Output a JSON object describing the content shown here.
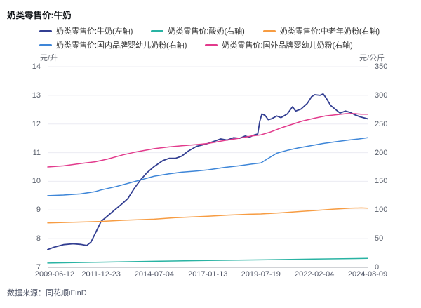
{
  "header": {
    "title": "奶类零售价:牛奶"
  },
  "footer": {
    "source": "数据来源：同花顺iFinD"
  },
  "chart_data": {
    "type": "line",
    "title": "奶类零售价:牛奶",
    "grid": true,
    "legend_position": "top",
    "x_axis": {
      "labels": [
        "2009-06-12",
        "2011-12-23",
        "2014-07-04",
        "2017-01-13",
        "2019-07-19",
        "2022-02-04",
        "2024-08-09"
      ],
      "tick_years": [
        2009.45,
        2011.98,
        2014.5,
        2017.04,
        2019.55,
        2022.09,
        2024.61
      ]
    },
    "y_axis_left": {
      "unit": "元/升",
      "min": 7,
      "max": 14,
      "ticks": [
        14,
        13,
        12,
        11,
        10,
        9,
        8,
        7
      ]
    },
    "y_axis_right": {
      "unit": "元/公斤",
      "min": 0,
      "max": 350,
      "ticks": [
        350,
        300,
        250,
        200,
        150,
        100,
        50,
        0
      ]
    },
    "colors": {
      "milk": "#333f92",
      "yogurt": "#29b3a3",
      "midlife_powder": "#f79c42",
      "domestic_formula": "#3e86d8",
      "foreign_formula": "#e23a8c",
      "grid": "#ececf3",
      "baseline": "#b4b6be"
    },
    "series": [
      {
        "name": "奶类零售价:牛奶(左轴)",
        "axis": "left",
        "color": "#333f92",
        "width": 1.8,
        "points": [
          [
            2009.45,
            7.62
          ],
          [
            2009.75,
            7.7
          ],
          [
            2010.2,
            7.79
          ],
          [
            2010.65,
            7.82
          ],
          [
            2011.0,
            7.8
          ],
          [
            2011.3,
            7.76
          ],
          [
            2011.5,
            7.88
          ],
          [
            2011.7,
            8.18
          ],
          [
            2011.98,
            8.6
          ],
          [
            2012.3,
            8.8
          ],
          [
            2012.65,
            9.02
          ],
          [
            2012.95,
            9.2
          ],
          [
            2013.25,
            9.4
          ],
          [
            2013.55,
            9.75
          ],
          [
            2013.85,
            10.05
          ],
          [
            2014.15,
            10.3
          ],
          [
            2014.5,
            10.52
          ],
          [
            2014.9,
            10.72
          ],
          [
            2015.2,
            10.8
          ],
          [
            2015.5,
            10.8
          ],
          [
            2015.8,
            10.88
          ],
          [
            2016.1,
            11.05
          ],
          [
            2016.5,
            11.22
          ],
          [
            2016.75,
            11.26
          ],
          [
            2017.04,
            11.32
          ],
          [
            2017.35,
            11.4
          ],
          [
            2017.65,
            11.48
          ],
          [
            2017.95,
            11.44
          ],
          [
            2018.25,
            11.52
          ],
          [
            2018.55,
            11.5
          ],
          [
            2018.8,
            11.58
          ],
          [
            2019.0,
            11.54
          ],
          [
            2019.25,
            11.62
          ],
          [
            2019.4,
            11.65
          ],
          [
            2019.5,
            12.1
          ],
          [
            2019.6,
            12.35
          ],
          [
            2019.75,
            12.3
          ],
          [
            2019.9,
            12.15
          ],
          [
            2020.05,
            12.18
          ],
          [
            2020.3,
            12.28
          ],
          [
            2020.5,
            12.22
          ],
          [
            2020.8,
            12.35
          ],
          [
            2021.05,
            12.6
          ],
          [
            2021.2,
            12.45
          ],
          [
            2021.45,
            12.52
          ],
          [
            2021.75,
            12.72
          ],
          [
            2021.95,
            12.95
          ],
          [
            2022.1,
            13.02
          ],
          [
            2022.35,
            13.0
          ],
          [
            2022.5,
            13.05
          ],
          [
            2022.65,
            12.9
          ],
          [
            2022.85,
            12.65
          ],
          [
            2023.1,
            12.5
          ],
          [
            2023.3,
            12.38
          ],
          [
            2023.55,
            12.45
          ],
          [
            2023.8,
            12.4
          ],
          [
            2024.0,
            12.32
          ],
          [
            2024.25,
            12.25
          ],
          [
            2024.61,
            12.18
          ]
        ]
      },
      {
        "name": "奶类零售价:酸奶(右轴)",
        "axis": "right",
        "color": "#29b3a3",
        "width": 1.5,
        "points": [
          [
            2009.45,
            7.5
          ],
          [
            2012.0,
            9.0
          ],
          [
            2014.5,
            10.5
          ],
          [
            2017.04,
            12.0
          ],
          [
            2019.55,
            13.0
          ],
          [
            2022.09,
            14.5
          ],
          [
            2024.61,
            15.5
          ]
        ]
      },
      {
        "name": "奶类零售价:中老年奶粉(右轴)",
        "axis": "right",
        "color": "#f79c42",
        "width": 1.5,
        "points": [
          [
            2009.45,
            77.5
          ],
          [
            2010.5,
            78.5
          ],
          [
            2011.98,
            80
          ],
          [
            2013.0,
            82
          ],
          [
            2014.5,
            84
          ],
          [
            2015.5,
            86.5
          ],
          [
            2017.04,
            89
          ],
          [
            2018.0,
            91
          ],
          [
            2019.0,
            92.5
          ],
          [
            2019.55,
            93
          ],
          [
            2020.5,
            95
          ],
          [
            2021.5,
            97.5
          ],
          [
            2022.09,
            99
          ],
          [
            2023.0,
            101.5
          ],
          [
            2023.8,
            103
          ],
          [
            2024.3,
            103.5
          ],
          [
            2024.61,
            103
          ]
        ]
      },
      {
        "name": "奶类零售价:国内品牌婴幼儿奶粉(右轴)",
        "axis": "right",
        "color": "#3e86d8",
        "width": 1.5,
        "points": [
          [
            2009.45,
            125
          ],
          [
            2010.2,
            126
          ],
          [
            2011.0,
            128
          ],
          [
            2011.7,
            132
          ],
          [
            2011.98,
            135
          ],
          [
            2012.7,
            141
          ],
          [
            2013.4,
            148
          ],
          [
            2014.0,
            154
          ],
          [
            2014.5,
            159
          ],
          [
            2015.2,
            163
          ],
          [
            2015.8,
            166
          ],
          [
            2016.5,
            168
          ],
          [
            2017.04,
            170
          ],
          [
            2017.8,
            174
          ],
          [
            2018.5,
            177
          ],
          [
            2019.1,
            180
          ],
          [
            2019.55,
            182
          ],
          [
            2019.9,
            190
          ],
          [
            2020.3,
            199
          ],
          [
            2020.8,
            204
          ],
          [
            2021.3,
            208
          ],
          [
            2021.9,
            212
          ],
          [
            2022.5,
            216
          ],
          [
            2023.1,
            219
          ],
          [
            2023.7,
            222
          ],
          [
            2024.2,
            224
          ],
          [
            2024.61,
            226
          ]
        ]
      },
      {
        "name": "奶类零售价:国外品牌婴幼儿奶粉(右轴)",
        "axis": "right",
        "color": "#e23a8c",
        "width": 1.5,
        "points": [
          [
            2009.45,
            175
          ],
          [
            2010.2,
            177
          ],
          [
            2011.0,
            181
          ],
          [
            2011.7,
            184
          ],
          [
            2012.3,
            189
          ],
          [
            2013.0,
            196
          ],
          [
            2013.6,
            201
          ],
          [
            2014.5,
            207
          ],
          [
            2015.2,
            210
          ],
          [
            2015.8,
            212
          ],
          [
            2016.5,
            214
          ],
          [
            2017.04,
            216
          ],
          [
            2017.8,
            221
          ],
          [
            2018.5,
            225
          ],
          [
            2019.1,
            229
          ],
          [
            2019.55,
            231
          ],
          [
            2020.0,
            236
          ],
          [
            2020.5,
            243
          ],
          [
            2021.0,
            249
          ],
          [
            2021.5,
            255
          ],
          [
            2022.09,
            260
          ],
          [
            2022.6,
            264
          ],
          [
            2023.1,
            266
          ],
          [
            2023.6,
            268
          ],
          [
            2024.0,
            268
          ],
          [
            2024.3,
            267
          ],
          [
            2024.61,
            267
          ]
        ]
      }
    ]
  }
}
